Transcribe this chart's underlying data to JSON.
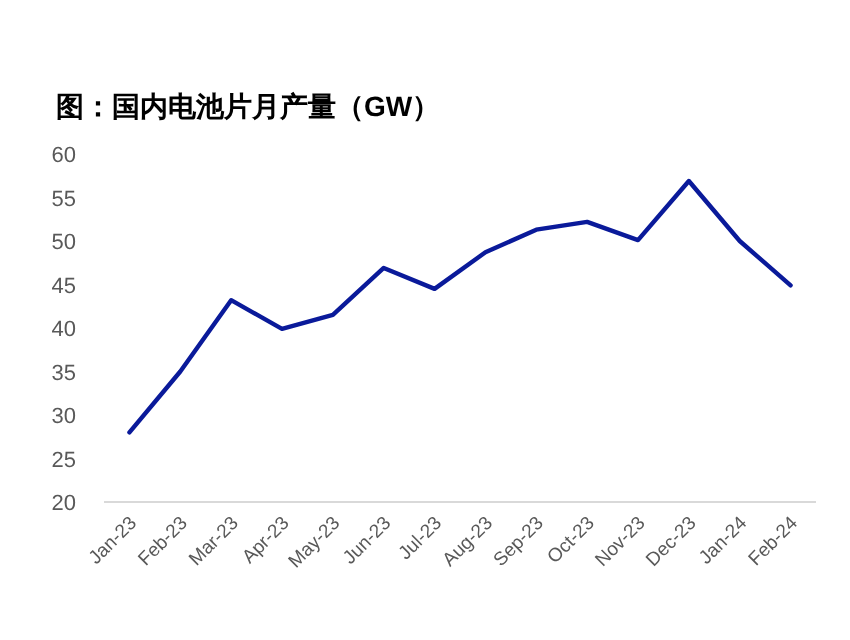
{
  "chart_data": {
    "type": "line",
    "title": "图：国内电池片月产量（GW）",
    "categories": [
      "Jan-23",
      "Feb-23",
      "Mar-23",
      "Apr-23",
      "May-23",
      "Jun-23",
      "Jul-23",
      "Aug-23",
      "Sep-23",
      "Oct-23",
      "Nov-23",
      "Dec-23",
      "Jan-24",
      "Feb-24"
    ],
    "series": [
      {
        "color": "#0a1a9a",
        "values": [
          28.0,
          35.0,
          43.2,
          39.9,
          41.5,
          46.9,
          44.5,
          48.7,
          51.3,
          52.2,
          50.1,
          56.9,
          50.0,
          44.9
        ]
      }
    ],
    "ylim": [
      20,
      60
    ],
    "yticks": [
      20,
      25,
      30,
      35,
      40,
      45,
      50,
      55,
      60
    ],
    "marker": "none",
    "line_style": "solid"
  }
}
